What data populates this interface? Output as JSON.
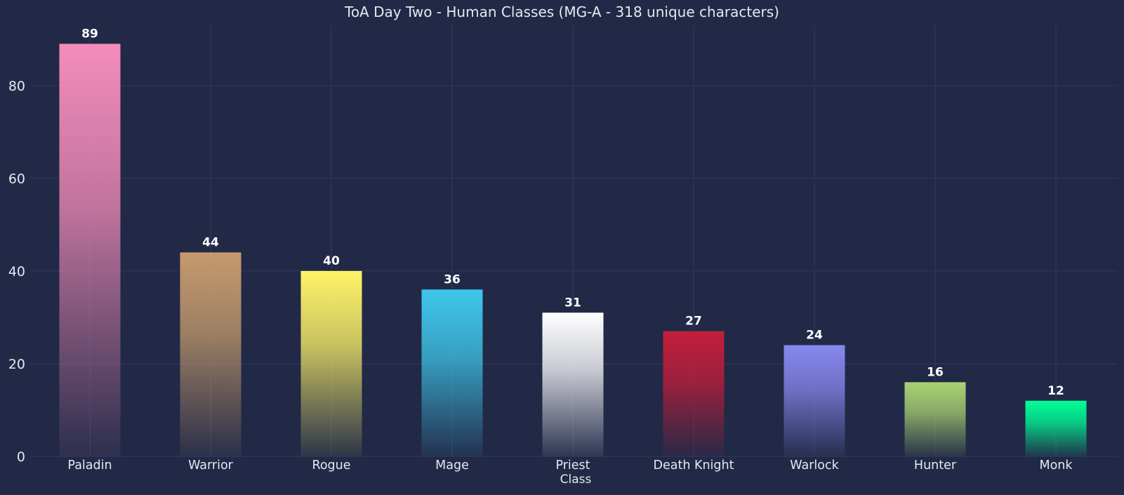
{
  "chart_data": {
    "type": "bar",
    "title": "ToA Day Two - Human Classes (MG-A - 318 unique characters)",
    "xlabel": "Class",
    "ylabel": "",
    "categories": [
      "Paladin",
      "Warrior",
      "Rogue",
      "Mage",
      "Priest",
      "Death Knight",
      "Warlock",
      "Hunter",
      "Monk"
    ],
    "values": [
      89,
      44,
      40,
      36,
      31,
      27,
      24,
      16,
      12
    ],
    "colors": [
      "#F48CBA",
      "#C69B6D",
      "#FFF468",
      "#3FC7EB",
      "#FFFFFF",
      "#C41E3A",
      "#8788EE",
      "#AAD372",
      "#00FF98"
    ],
    "ylim": [
      0,
      93
    ],
    "yticks": [
      0,
      20,
      40,
      60,
      80
    ],
    "grid": true,
    "data_labels": true,
    "background": "#212947",
    "grid_color": "#2e3a5c",
    "text_color": "#e6e8ee"
  }
}
